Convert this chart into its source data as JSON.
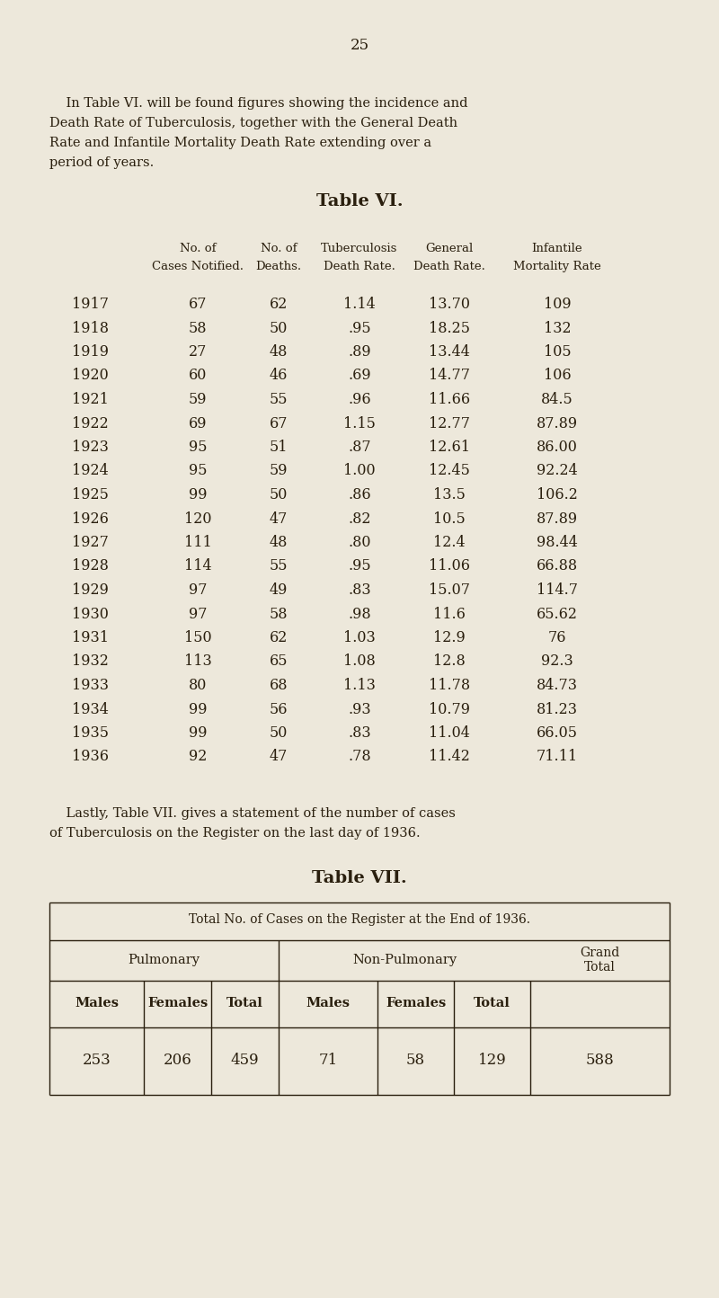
{
  "page_number": "25",
  "bg_color": "#ede8db",
  "intro_text_indent": "    In Table VI. will be found figures showing the incidence and",
  "intro_text_lines": [
    "    In Table VI. will be found figures showing the incidence and",
    "Death Rate of Tuberculosis, together with the General Death",
    "Rate and Infantile Mortality Death Rate extending over a",
    "period of years."
  ],
  "table6_title": "Table VI.",
  "col_headers_line1": [
    "",
    "No. of",
    "No. of",
    "Tuberculosis",
    "General",
    "Infantile"
  ],
  "col_headers_line2": [
    "",
    "Cases Notified.",
    "Deaths.",
    "Death Rate.",
    "Death Rate.",
    "Mortality Rate"
  ],
  "years": [
    1917,
    1918,
    1919,
    1920,
    1921,
    1922,
    1923,
    1924,
    1925,
    1926,
    1927,
    1928,
    1929,
    1930,
    1931,
    1932,
    1933,
    1934,
    1935,
    1936
  ],
  "cases": [
    67,
    58,
    27,
    60,
    59,
    69,
    95,
    95,
    99,
    120,
    111,
    114,
    97,
    97,
    150,
    113,
    80,
    99,
    99,
    92
  ],
  "deaths": [
    62,
    50,
    48,
    46,
    55,
    67,
    51,
    59,
    50,
    47,
    48,
    55,
    49,
    58,
    62,
    65,
    68,
    56,
    50,
    47
  ],
  "tb_rate": [
    "1.14",
    ".95",
    ".89",
    ".69",
    ".96",
    "1.15",
    ".87",
    "1.00",
    ".86",
    ".82",
    ".80",
    ".95",
    ".83",
    ".98",
    "1.03",
    "1.08",
    "1.13",
    ".93",
    ".83",
    ".78"
  ],
  "gen_rate": [
    "13.70",
    "18.25",
    "13.44",
    "14.77",
    "11.66",
    "12.77",
    "12.61",
    "12.45",
    "13.5",
    "10.5",
    "12.4",
    "11.06",
    "15.07",
    "11.6",
    "12.9",
    "12.8",
    "11.78",
    "10.79",
    "11.04",
    "11.42"
  ],
  "inf_rate": [
    "109",
    "132",
    "105",
    "106",
    "84.5",
    "87.89",
    "86.00",
    "92.24",
    "106.2",
    "87.89",
    "98.44",
    "66.88",
    "114.7",
    "65.62",
    "76",
    "92.3",
    "84.73",
    "81.23",
    "66.05",
    "71.11"
  ],
  "lastly_text_lines": [
    "    Lastly, Table VII. gives a statement of the number of cases",
    "of Tuberculosis on the Register on the last day of 1936."
  ],
  "table7_title": "Table VII.",
  "table7_header": "Total No. of Cases on the Register at the End of 1936.",
  "pulm_label": "Pulmonary",
  "nonpulm_label": "Non-Pulmonary",
  "grand_total_label": "Grand\nTotal",
  "sub_headers": [
    "Males",
    "Females",
    "Total",
    "Males",
    "Females",
    "Total"
  ],
  "data_row": [
    "253",
    "206",
    "459",
    "71",
    "58",
    "129",
    "588"
  ]
}
